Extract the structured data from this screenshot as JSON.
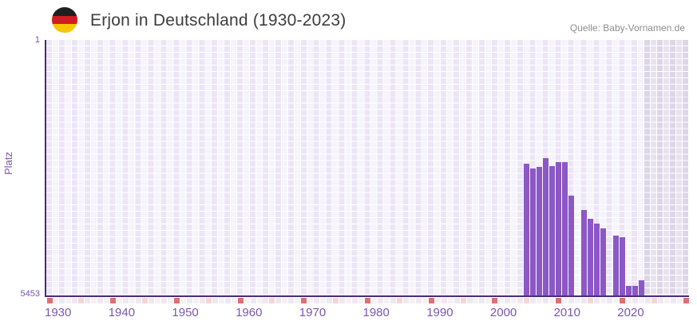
{
  "header": {
    "title": "Erjon in Deutschland (1930-2023)",
    "source": "Quelle: Baby-Vornamen.de",
    "flag_icon": "german-flag-icon",
    "flag_colors": [
      "#1f1f1f",
      "#d01c24",
      "#f8c700"
    ]
  },
  "y_axis": {
    "label": "Platz",
    "top_tick": "1",
    "bottom_tick": "5453"
  },
  "x_axis": {
    "tick_labels": [
      "1930",
      "1940",
      "1950",
      "1960",
      "1970",
      "1980",
      "1990",
      "2000",
      "2010",
      "2020"
    ]
  },
  "chart_data": {
    "type": "bar",
    "title": "Erjon in Deutschland (1930-2023)",
    "xlabel": "",
    "ylabel": "Platz",
    "x_axis_range_drawn": [
      1930,
      2030
    ],
    "data_year_range": [
      1930,
      2023
    ],
    "ylim": [
      1,
      5453
    ],
    "y_axis_inverted": true,
    "grid": true,
    "legend": "none",
    "no_data_band_years": [
      2024,
      2030
    ],
    "years_without_bar_in_data_range": [
      2013,
      2018
    ],
    "series": [
      {
        "name": "Platz",
        "points": [
          {
            "year": 2005,
            "rank": 2640
          },
          {
            "year": 2006,
            "rank": 2740
          },
          {
            "year": 2007,
            "rank": 2710
          },
          {
            "year": 2008,
            "rank": 2520
          },
          {
            "year": 2009,
            "rank": 2700
          },
          {
            "year": 2010,
            "rank": 2600
          },
          {
            "year": 2011,
            "rank": 2600
          },
          {
            "year": 2012,
            "rank": 3320
          },
          {
            "year": 2014,
            "rank": 3630
          },
          {
            "year": 2015,
            "rank": 3820
          },
          {
            "year": 2016,
            "rank": 3925
          },
          {
            "year": 2017,
            "rank": 4030
          },
          {
            "year": 2019,
            "rank": 4170
          },
          {
            "year": 2020,
            "rank": 4215
          },
          {
            "year": 2021,
            "rank": 5245
          },
          {
            "year": 2022,
            "rank": 5255
          },
          {
            "year": 2023,
            "rank": 5125
          }
        ]
      }
    ],
    "colors": {
      "bar": "#8c58c5",
      "axis_line": "#4b2c7c",
      "axis_label_text": "#7b57ac",
      "grid_cell_dark": "#ece5f6",
      "grid_cell_light": "#f6f3fc",
      "future_band_cell_dark": "#ddd5e8",
      "future_band_cell_light": "#e8e2f0",
      "decade_tick_square": "#e06e76",
      "half_decade_tick_square": "#f4d6da",
      "default_tick_square_a": "#eee8f6",
      "default_tick_square_b": "#f5f1fa",
      "title_text": "#3d3d3d",
      "source_text": "#8e8e8e"
    }
  }
}
